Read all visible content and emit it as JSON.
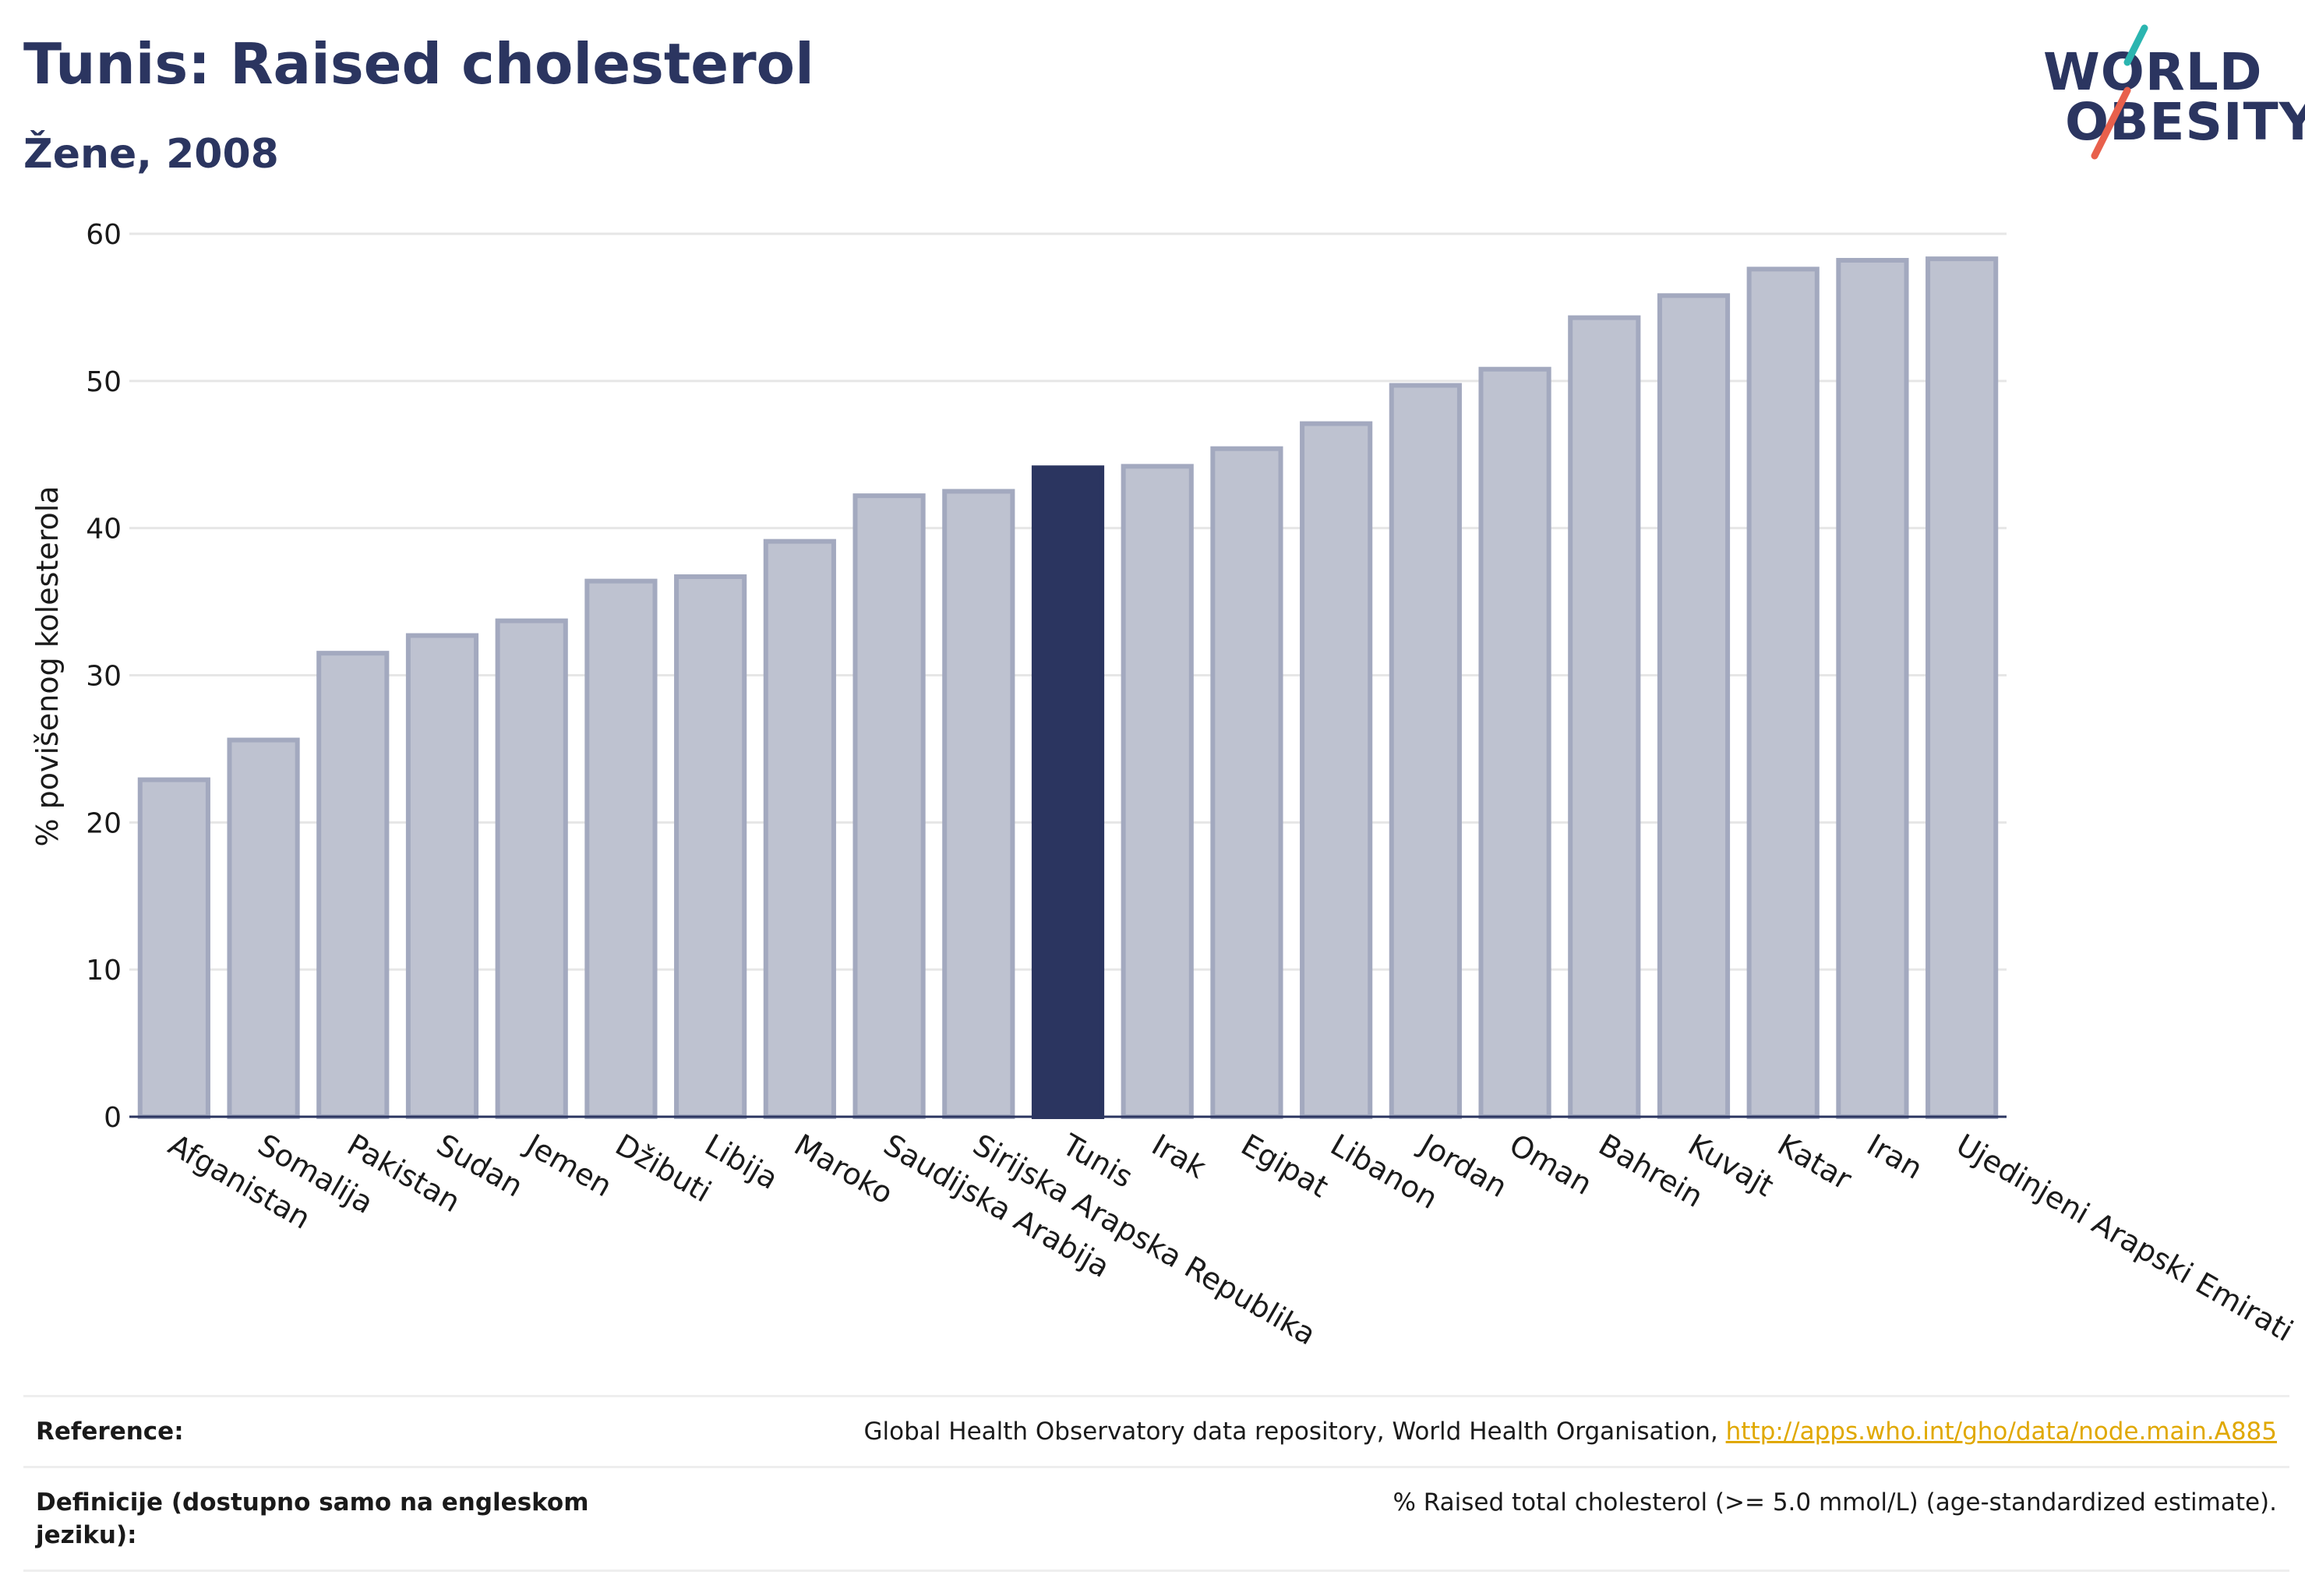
{
  "header": {
    "title": "Tunis: Raised cholesterol",
    "subtitle": "Žene, 2008"
  },
  "logo": {
    "line1": "WORLD",
    "line2": "OBESITY",
    "colors": {
      "text": "#2b3560",
      "slash_top": "#2bb5b0",
      "slash_bottom": "#e8604c"
    }
  },
  "colors": {
    "highlight_bar": "#2b3560",
    "other_bar_fill": "#bec2d0",
    "other_bar_stroke": "#a3a9bf",
    "grid": "#e6e6e6",
    "axis": "#2b3560"
  },
  "chart_data": {
    "type": "bar",
    "title": "Tunis: Raised cholesterol",
    "subtitle": "Žene, 2008",
    "xlabel": "",
    "ylabel": "% povišenog kolesterola",
    "ylim": [
      0,
      60
    ],
    "yticks": [
      0,
      10,
      20,
      30,
      40,
      50,
      60
    ],
    "grid": true,
    "highlight": "Tunis",
    "categories": [
      "Afganistan",
      "Somalija",
      "Pakistan",
      "Sudan",
      "Jemen",
      "Džibuti",
      "Libija",
      "Maroko",
      "Saudijska Arabija",
      "Sirijska Arapska Republika",
      "Tunis",
      "Irak",
      "Egipat",
      "Libanon",
      "Jordan",
      "Oman",
      "Bahrein",
      "Kuvajt",
      "Katar",
      "Iran",
      "Ujedinjeni Arapski Emirati"
    ],
    "values": [
      22.9,
      25.6,
      31.5,
      32.7,
      33.7,
      36.4,
      36.7,
      39.1,
      42.2,
      42.5,
      44.1,
      44.2,
      45.4,
      47.1,
      49.7,
      50.8,
      54.3,
      55.8,
      57.6,
      58.2,
      58.3
    ]
  },
  "footer": {
    "reference_label": "Reference:",
    "reference_text": "Global Health Observatory data repository, World Health Organisation, ",
    "reference_link": "http://apps.who.int/gho/data/node.main.A885",
    "definition_label": "Definicije (dostupno samo na engleskom jeziku):",
    "definition_text": "% Raised total cholesterol (>= 5.0 mmol/L) (age-standardized estimate)."
  }
}
